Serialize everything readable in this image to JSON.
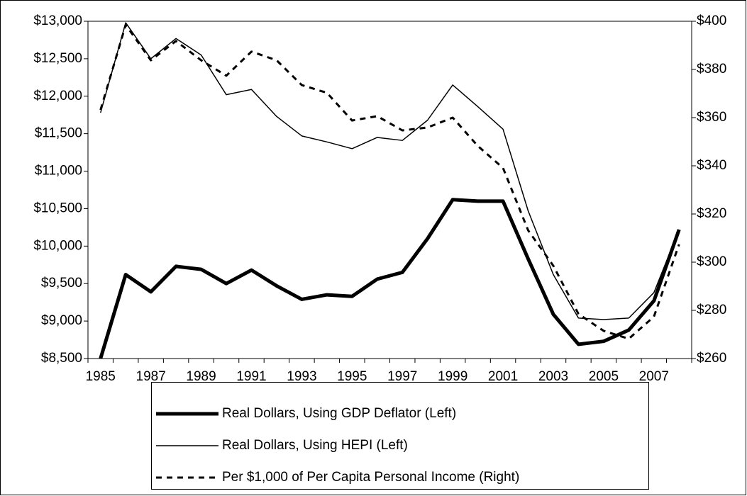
{
  "chart_data": {
    "type": "line",
    "categories": [
      "1985",
      null,
      "1987",
      null,
      "1989",
      null,
      "1991",
      null,
      "1993",
      null,
      "1995",
      null,
      "1997",
      null,
      "1999",
      null,
      "2001",
      null,
      "2003",
      null,
      "2005",
      null,
      "2007",
      null
    ],
    "series": [
      {
        "name": "Real Dollars, Using GDP Deflator (Left)",
        "color": "#000000",
        "line_width": 5,
        "dash": false,
        "values": [
          8500,
          9620,
          9390,
          9730,
          9690,
          9500,
          9680,
          9470,
          9290,
          9350,
          9330,
          9560,
          9650,
          10100,
          10620,
          10600,
          10600,
          9830,
          9090,
          8690,
          8730,
          8880,
          9270,
          10220
        ]
      },
      {
        "name": "Real Dollars, Using HEPI (Left)",
        "color": "#000000",
        "line_width": 1.5,
        "dash": false,
        "values": [
          11780,
          12980,
          12500,
          12770,
          12550,
          12020,
          12090,
          11730,
          11470,
          11390,
          11300,
          11450,
          11410,
          11680,
          12150,
          11860,
          11560,
          10470,
          9620,
          9040,
          9020,
          9040,
          9380,
          10220
        ]
      },
      {
        "name": "Per $1,000 of Per Capita Personal Income (Right)",
        "color": "#000000",
        "line_width": 3,
        "dash": true,
        "axis": "y2",
        "values": [
          363.2,
          398.5,
          383.8,
          391.8,
          383.8,
          377.4,
          387.4,
          383.8,
          373.5,
          370.3,
          358.8,
          360.6,
          354.7,
          355.9,
          360,
          348.2,
          339.1,
          313.2,
          298.5,
          278.5,
          271.5,
          268.2,
          277.4,
          307.4
        ]
      }
    ],
    "ylim": [
      8500,
      13000
    ],
    "yticks": [
      {
        "value": 8500,
        "label": "$8,500"
      },
      {
        "value": 9000,
        "label": "$9,000"
      },
      {
        "value": 9500,
        "label": "$9,500"
      },
      {
        "value": 10000,
        "label": "$10,000"
      },
      {
        "value": 10500,
        "label": "$10,500"
      },
      {
        "value": 11000,
        "label": "$11,000"
      },
      {
        "value": 11500,
        "label": "$11,500"
      },
      {
        "value": 12000,
        "label": "$12,000"
      },
      {
        "value": 12500,
        "label": "$12,500"
      },
      {
        "value": 13000,
        "label": "$13,000"
      }
    ],
    "y2lim": [
      260,
      400
    ],
    "y2ticks": [
      {
        "value": 260,
        "label": "$260"
      },
      {
        "value": 280,
        "label": "$280"
      },
      {
        "value": 300,
        "label": "$300"
      },
      {
        "value": 320,
        "label": "$320"
      },
      {
        "value": 340,
        "label": "$340"
      },
      {
        "value": 360,
        "label": "$360"
      },
      {
        "value": 380,
        "label": "$380"
      },
      {
        "value": 400,
        "label": "$400"
      }
    ],
    "grid": false
  }
}
